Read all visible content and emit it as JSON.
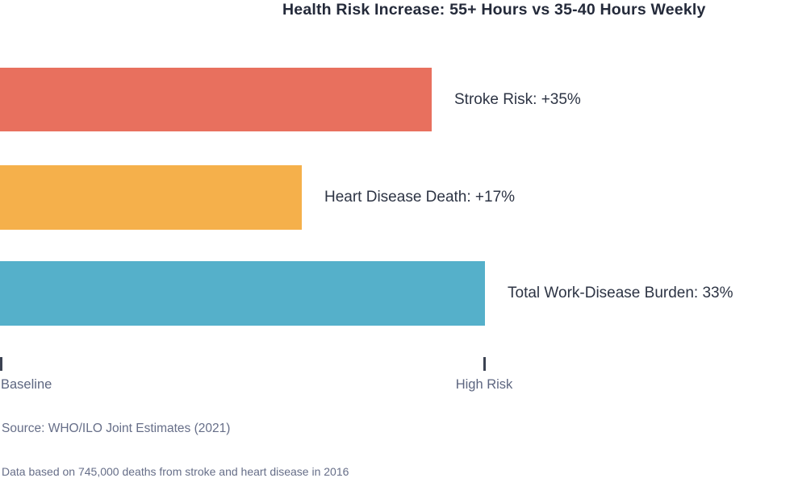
{
  "chart_data": {
    "type": "bar",
    "orientation": "horizontal",
    "title": "Health Risk Increase: 55+ Hours vs 35-40 Hours Weekly",
    "categories": [
      "Stroke Risk",
      "Heart Disease Death",
      "Total Work-Disease Burden"
    ],
    "values": [
      35,
      17,
      33
    ],
    "bars": [
      {
        "category": "Stroke Risk",
        "value": 35,
        "label": "Stroke Risk: +35%",
        "color": "#e8705e",
        "width_px": "535px"
      },
      {
        "category": "Heart Disease Death",
        "value": 17,
        "label": "Heart Disease Death: +17%",
        "color": "#f5b04b",
        "width_px": "374px"
      },
      {
        "category": "Total Work-Disease Burden",
        "value": 33,
        "label": "Total Work-Disease Burden: 33%",
        "color": "#55b0ca",
        "width_px": "601px"
      }
    ],
    "x_axis": {
      "ticks": [
        {
          "label": "Baseline",
          "left_px": "0px"
        },
        {
          "label": "High Risk",
          "left_px": "599px"
        }
      ]
    },
    "legend": "none",
    "grid": false,
    "source": "Source: WHO/ILO Joint Estimates (2021)",
    "footnote": "Data based on 745,000 deaths from stroke and heart disease in 2016"
  },
  "colors": {
    "background": "#ffffff",
    "title_text": "#242a3a",
    "bar_label_text": "#2d3444",
    "axis_tick": "#3b4252",
    "axis_label_text": "#5d6680",
    "source_text": "#666e88"
  }
}
